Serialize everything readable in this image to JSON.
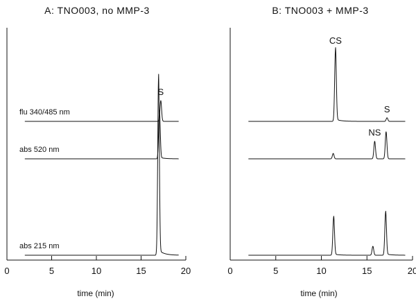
{
  "chart_data": [
    {
      "type": "line",
      "title": "A: TNO003, no MMP-3",
      "xlabel": "time (min)",
      "xlim": [
        0,
        20
      ],
      "xticks": [
        "0",
        "5",
        "10",
        "15",
        "20"
      ],
      "traces": [
        {
          "name": "flu 340/485 nm",
          "x_range": [
            2,
            19.2
          ],
          "peaks": [
            {
              "label": "S",
              "x": 17.2,
              "height": 0.12
            }
          ]
        },
        {
          "name": "abs 520 nm",
          "x_range": [
            2,
            19.2
          ],
          "peaks": [
            {
              "label": "",
              "x": 17.05,
              "height": 0.35
            }
          ]
        },
        {
          "name": "abs 215 nm",
          "x_range": [
            2,
            19.2
          ],
          "peaks": [
            {
              "label": "",
              "x": 16.95,
              "height": 1.0
            }
          ]
        }
      ]
    },
    {
      "type": "line",
      "title": "B: TNO003 + MMP-3",
      "xlabel": "time (min)",
      "xlim": [
        0,
        20
      ],
      "xticks": [
        "0",
        "5",
        "10",
        "15",
        "20"
      ],
      "traces": [
        {
          "name": "",
          "x_range": [
            2,
            19.2
          ],
          "peaks": [
            {
              "label": "CS",
              "x": 11.55,
              "height": 1.0
            },
            {
              "label": "S",
              "x": 17.2,
              "height": 0.05
            }
          ]
        },
        {
          "name": "",
          "x_range": [
            2,
            19.2
          ],
          "peaks": [
            {
              "label": "",
              "x": 11.3,
              "height": 0.04
            },
            {
              "label": "NS",
              "x": 15.85,
              "height": 0.13
            },
            {
              "label": "",
              "x": 17.1,
              "height": 0.2
            }
          ]
        },
        {
          "name": "",
          "x_range": [
            2,
            19.2
          ],
          "peaks": [
            {
              "label": "",
              "x": 11.35,
              "height": 0.55
            },
            {
              "label": "",
              "x": 15.65,
              "height": 0.13
            },
            {
              "label": "",
              "x": 17.05,
              "height": 0.62
            }
          ]
        }
      ]
    }
  ]
}
